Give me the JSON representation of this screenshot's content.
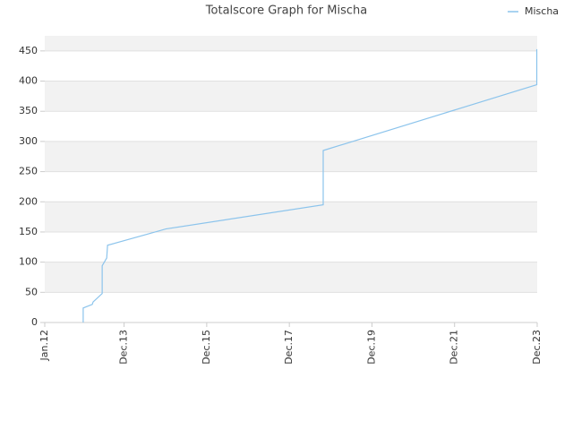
{
  "chart_data": {
    "type": "line",
    "title": "Totalscore Graph for Mischa",
    "legend": "top-right",
    "grid": true,
    "xlim": [
      2012.0,
      2023.92
    ],
    "xticks": [
      {
        "value": 2012.0,
        "label": "Jan.12"
      },
      {
        "value": 2013.92,
        "label": "Dec.13"
      },
      {
        "value": 2015.92,
        "label": "Dec.15"
      },
      {
        "value": 2017.92,
        "label": "Dec.17"
      },
      {
        "value": 2019.92,
        "label": "Dec.19"
      },
      {
        "value": 2021.92,
        "label": "Dec.21"
      },
      {
        "value": 2023.92,
        "label": "Dec.23"
      }
    ],
    "ylim": [
      0,
      475
    ],
    "yticks": [
      0,
      50,
      100,
      150,
      200,
      250,
      300,
      350,
      400,
      450
    ],
    "x": [
      2012.93,
      2012.93,
      2013.15,
      2013.17,
      2013.39,
      2013.39,
      2013.5,
      2013.52,
      2014.78,
      2014.93,
      2018.74,
      2018.74,
      2023.91,
      2023.91
    ],
    "series": [
      {
        "name": "Mischa",
        "color": "#8cc4ec",
        "values": [
          0,
          24,
          30,
          34,
          48,
          94,
          107,
          128,
          152,
          155,
          195,
          285,
          394,
          453
        ]
      }
    ]
  }
}
